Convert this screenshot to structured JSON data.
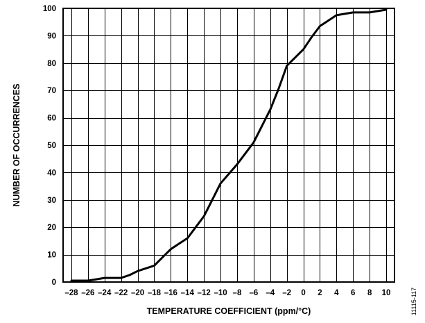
{
  "chart_data": {
    "type": "line",
    "title": "",
    "xlabel": "TEMPERATURE COEFFICIENT (ppm/°C)",
    "ylabel": "NUMBER OF OCCURRENCES",
    "xlim": [
      -29,
      11
    ],
    "ylim": [
      0,
      100
    ],
    "grid": true,
    "x_ticks": [
      -28,
      -26,
      -24,
      -22,
      -20,
      -18,
      -16,
      -14,
      -12,
      -10,
      -8,
      -6,
      -4,
      -2,
      0,
      2,
      4,
      6,
      8,
      10
    ],
    "x_tick_labels": [
      "–28",
      "–26",
      "–24",
      "–22",
      "–20",
      "–18",
      "–16",
      "–14",
      "–12",
      "–10",
      "–8",
      "–6",
      "–4",
      "–2",
      "0",
      "2",
      "4",
      "6",
      "8",
      "10"
    ],
    "y_ticks": [
      0,
      10,
      20,
      30,
      40,
      50,
      60,
      70,
      80,
      90,
      100
    ],
    "y_tick_labels": [
      "0",
      "10",
      "20",
      "30",
      "40",
      "50",
      "60",
      "70",
      "80",
      "90",
      "100"
    ],
    "series": [
      {
        "x": [
          -28,
          -26,
          -25,
          -24,
          -23,
          -22,
          -21,
          -20,
          -19,
          -18,
          -17,
          -16,
          -15,
          -14,
          -13,
          -12,
          -11,
          -10,
          -9,
          -8,
          -7,
          -6,
          -5,
          -4,
          -3,
          -2,
          -1,
          0,
          1,
          2,
          3,
          4,
          5,
          6,
          7,
          8,
          9,
          10
        ],
        "y": [
          0.5,
          0.5,
          1,
          1.5,
          1.5,
          1.5,
          2.5,
          4,
          5,
          6,
          9,
          12,
          14,
          16,
          20,
          24,
          30,
          36,
          39.5,
          43,
          47,
          51,
          57,
          63,
          70.5,
          79,
          82,
          85,
          89.5,
          93.5,
          95.5,
          97.5,
          98,
          98.5,
          98.5,
          98.5,
          99,
          99.5
        ]
      }
    ]
  },
  "figure_id": "11115-117"
}
